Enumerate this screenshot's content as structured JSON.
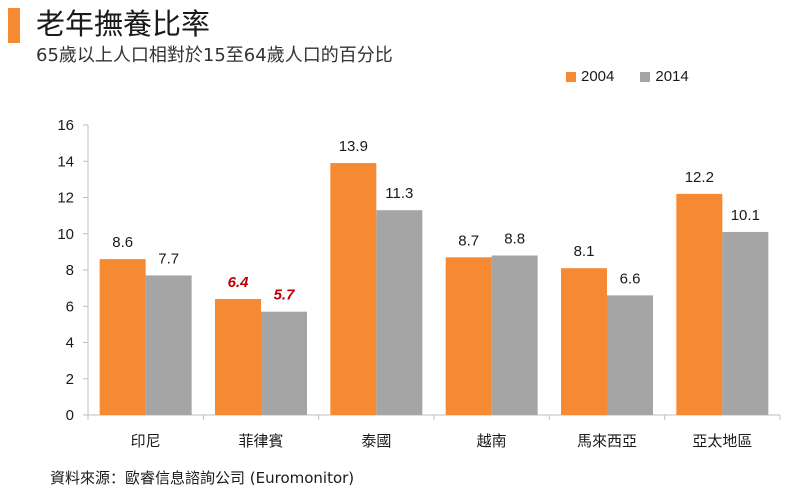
{
  "header": {
    "title": "老年撫養比率",
    "subtitle": "65歲以上人口相對於15至64歲人口的百分比"
  },
  "footer": {
    "source": "資料來源：歐睿信息諮詢公司 (Euromonitor)"
  },
  "colors": {
    "accent": "#f58a33",
    "series_2004": "#f58a33",
    "series_2014": "#a5a5a5",
    "highlight_label": "#c00000"
  },
  "chart_data": {
    "type": "bar",
    "title": "老年撫養比率",
    "subtitle": "65歲以上人口相對於15至64歲人口的百分比",
    "categories": [
      "印尼",
      "菲律賓",
      "泰國",
      "越南",
      "馬來西亞",
      "亞太地區"
    ],
    "series": [
      {
        "name": "2004",
        "color": "#f58a33",
        "values": [
          8.6,
          6.4,
          13.9,
          8.7,
          8.1,
          12.2
        ]
      },
      {
        "name": "2014",
        "color": "#a5a5a5",
        "values": [
          7.7,
          5.7,
          11.3,
          8.8,
          6.6,
          10.1
        ]
      }
    ],
    "highlighted_category": "菲律賓",
    "ylim": [
      0,
      16
    ],
    "yticks": [
      0,
      2,
      4,
      6,
      8,
      10,
      12,
      14,
      16
    ],
    "grid": false,
    "legend_position": "top-right",
    "xlabel": "",
    "ylabel": ""
  }
}
